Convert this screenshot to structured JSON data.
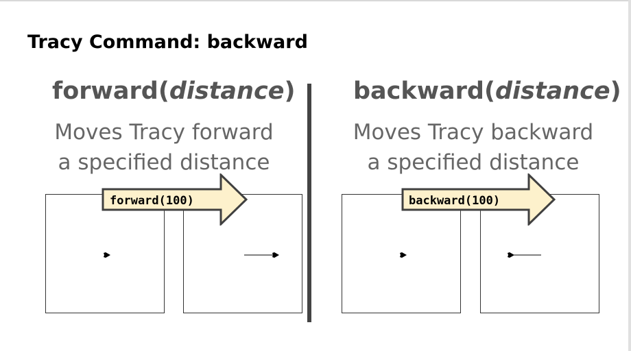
{
  "slide": {
    "title": "Tracy Command: backward"
  },
  "forward": {
    "name": "forward",
    "open": "(",
    "arg": "distance",
    "close": ")",
    "desc_line1": "Moves Tracy forward",
    "desc_line2": "a specified distance",
    "example": "forward(100)"
  },
  "backward": {
    "name": "backward",
    "open": "(",
    "arg": "distance",
    "close": ")",
    "desc_line1": "Moves Tracy backward",
    "desc_line2": "a specified distance",
    "example": "backward(100)"
  },
  "colors": {
    "arrow_fill": "#fdf1cc",
    "arrow_stroke": "#404040",
    "divider": "#444444",
    "heading_text": "#555555"
  }
}
